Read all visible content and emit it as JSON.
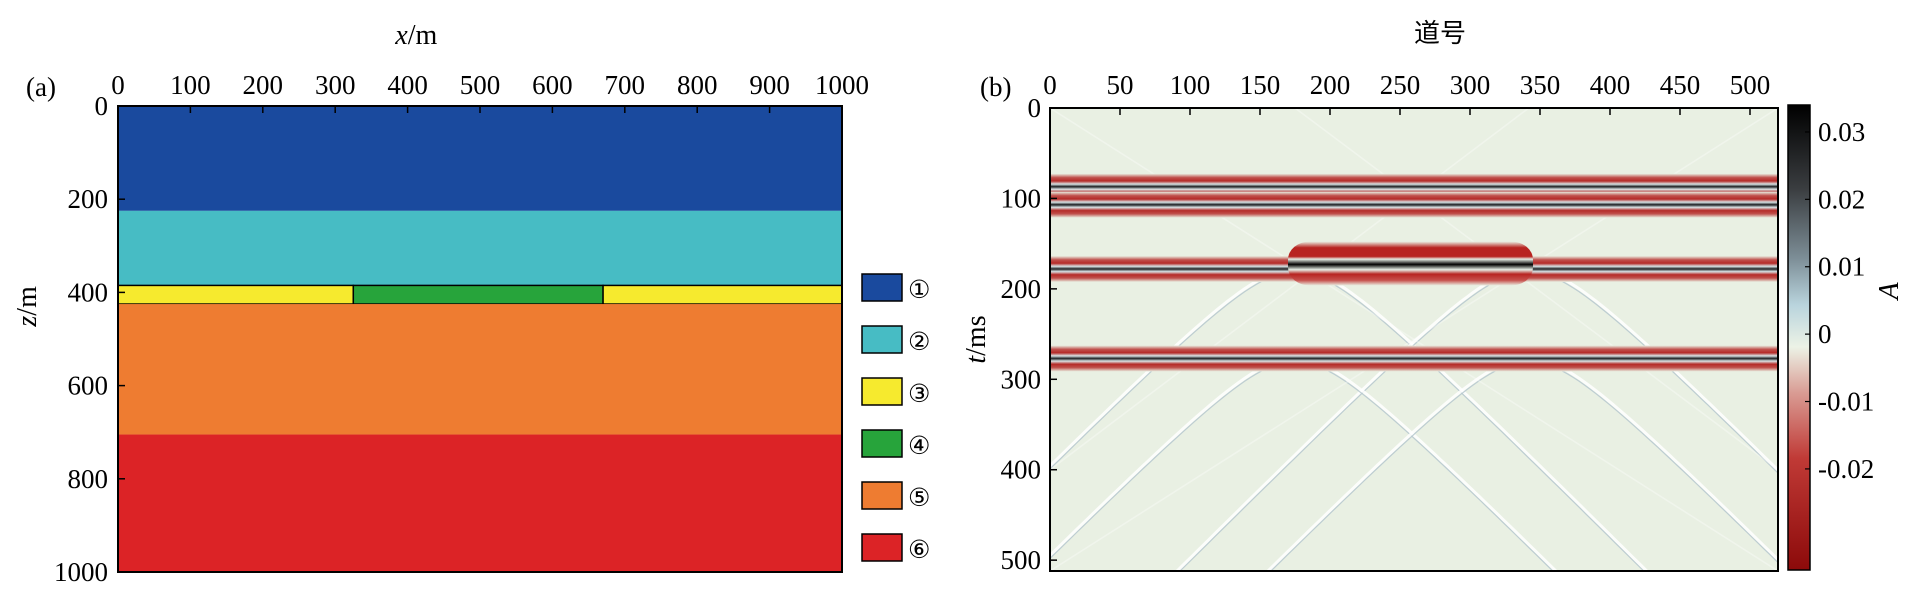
{
  "chart_data": [
    {
      "id": "a",
      "panel_label": "(a)",
      "type": "heatmap",
      "xlabel": {
        "var": "x",
        "unit": "/m"
      },
      "ylabel": {
        "var": "z",
        "unit": "/m"
      },
      "xlim": [
        0,
        1000
      ],
      "ylim": [
        0,
        1000
      ],
      "y_inverted": true,
      "x_axis_position": "top",
      "x_ticks": [
        0,
        100,
        200,
        300,
        400,
        500,
        600,
        700,
        800,
        900,
        1000
      ],
      "y_ticks": [
        0,
        200,
        400,
        600,
        800,
        1000
      ],
      "regions": [
        {
          "label": "①",
          "color": "#1a4a9e",
          "x": [
            0,
            1000
          ],
          "z": [
            0,
            225
          ]
        },
        {
          "label": "②",
          "color": "#47bcc4",
          "x": [
            0,
            1000
          ],
          "z": [
            225,
            385
          ]
        },
        {
          "label": "③",
          "color": "#f6ea2e",
          "x": [
            0,
            325
          ],
          "z": [
            385,
            425
          ]
        },
        {
          "label": "④",
          "color": "#27a43b",
          "x": [
            325,
            670
          ],
          "z": [
            385,
            425
          ]
        },
        {
          "label": "③",
          "color": "#f6ea2e",
          "x": [
            670,
            1000
          ],
          "z": [
            385,
            425
          ]
        },
        {
          "label": "⑤",
          "color": "#ee7c31",
          "x": [
            0,
            1000
          ],
          "z": [
            425,
            705
          ]
        },
        {
          "label": "⑥",
          "color": "#dc2326",
          "x": [
            0,
            1000
          ],
          "z": [
            705,
            1000
          ]
        }
      ],
      "legend": [
        {
          "label": "①",
          "color": "#1a4a9e"
        },
        {
          "label": "②",
          "color": "#47bcc4"
        },
        {
          "label": "③",
          "color": "#f6ea2e"
        },
        {
          "label": "④",
          "color": "#27a43b"
        },
        {
          "label": "⑤",
          "color": "#ee7c31"
        },
        {
          "label": "⑥",
          "color": "#dc2326"
        }
      ],
      "legend_position": "right"
    },
    {
      "id": "b",
      "panel_label": "(b)",
      "type": "heatmap",
      "title": "道号",
      "ylabel": {
        "var": "t",
        "unit": "/ms"
      },
      "xlim": [
        0,
        520
      ],
      "ylim": [
        0,
        512
      ],
      "y_inverted": true,
      "x_axis_position": "top",
      "x_ticks": [
        0,
        50,
        100,
        150,
        200,
        250,
        300,
        350,
        400,
        450,
        500
      ],
      "y_ticks": [
        0,
        100,
        200,
        300,
        400,
        500
      ],
      "colorbar": {
        "label": "A",
        "ticks": [
          0.03,
          0.02,
          0.01,
          0,
          -0.01,
          -0.02
        ],
        "tick_labels": [
          "0.03",
          "0.02",
          "0.01",
          "0",
          "-0.01",
          "-0.02"
        ],
        "range": [
          -0.035,
          0.034
        ],
        "colors": [
          "#000000",
          "#5f6a70",
          "#a9c6d2",
          "#e9f0e3",
          "#cf6d68",
          "#b01e1e",
          "#8c0a0a"
        ]
      },
      "background": "#e9f0e3",
      "flat_reflections_t": [
        87,
        107,
        178,
        277
      ],
      "raised_reflection": {
        "t": 172,
        "x_range": [
          170,
          345
        ]
      },
      "diffraction_hyperbola_apexes": [
        {
          "x": 175,
          "t": 178
        },
        {
          "x": 342,
          "t": 178
        },
        {
          "x": 175,
          "t": 277
        },
        {
          "x": 342,
          "t": 277
        }
      ]
    }
  ]
}
